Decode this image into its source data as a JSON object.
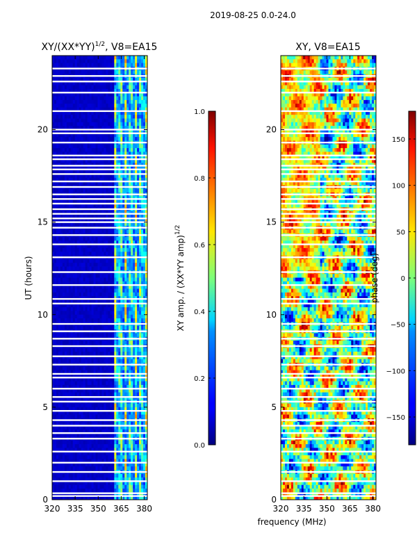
{
  "suptitle": "2019-08-25 0.0-24.0",
  "chart_data": [
    {
      "type": "heatmap",
      "title": "XY/(XX*YY)^(1/2), V8=EA15",
      "title_main": "XY/(XX*YY)",
      "title_exp": "1/2",
      "title_suffix": ", V8=EA15",
      "xlabel": "",
      "ylabel": "UT (hours)",
      "xlim": [
        320,
        382
      ],
      "ylim": [
        0,
        24
      ],
      "xticks": [
        320,
        335,
        350,
        365,
        380
      ],
      "yticks": [
        0,
        5,
        10,
        15,
        20
      ],
      "colorbar": {
        "label": "XY amp. / (XX*YY amp)^(1/2)",
        "label_main": "XY amp. / (XX*YY amp)",
        "label_exp": "1/2",
        "range": [
          0.0,
          1.0
        ],
        "ticks": [
          0.0,
          0.2,
          0.4,
          0.6,
          0.8,
          1.0
        ],
        "tick_labels": [
          "0.0",
          "0.2",
          "0.4",
          "0.6",
          "0.8",
          "1.0"
        ]
      },
      "signal_band_mhz": [
        360,
        382
      ],
      "flagged_hours": [
        0.2,
        0.35,
        1.0,
        1.5,
        2.0,
        2.6,
        3.3,
        3.6,
        4.0,
        4.3,
        4.8,
        5.3,
        5.55,
        6.0,
        6.6,
        6.8,
        7.3,
        7.75,
        8.3,
        8.7,
        9.1,
        9.5,
        10.6,
        10.85,
        11.6,
        12.3,
        13.1,
        13.8,
        14.3,
        14.7,
        15.0,
        15.2,
        15.45,
        15.7,
        16.0,
        16.25,
        16.5,
        16.9,
        17.2,
        17.6,
        17.85,
        18.05,
        18.4,
        18.6,
        19.3,
        19.8,
        20.0,
        21.0,
        22.0,
        22.6,
        22.9,
        23.3
      ]
    },
    {
      "type": "heatmap",
      "title": "XY, V8=EA15",
      "xlabel": "frequency (MHz)",
      "ylabel": "",
      "xlim": [
        320,
        382
      ],
      "ylim": [
        0,
        24
      ],
      "xticks": [
        320,
        335,
        350,
        365,
        380
      ],
      "yticks": [
        0,
        5,
        10,
        15,
        20
      ],
      "colorbar": {
        "label": "phase (deg)",
        "range": [
          -180,
          180
        ],
        "ticks": [
          -150,
          -100,
          -50,
          0,
          50,
          100,
          150
        ],
        "tick_labels": [
          "−150",
          "−100",
          "−50",
          "0",
          "50",
          "100",
          "150"
        ]
      },
      "flagged_hours": [
        0.2,
        0.35,
        1.0,
        1.5,
        2.0,
        2.6,
        3.3,
        3.6,
        4.0,
        4.3,
        4.8,
        5.3,
        5.55,
        6.0,
        6.6,
        6.8,
        7.3,
        7.75,
        8.3,
        8.7,
        9.1,
        9.5,
        10.6,
        10.85,
        11.6,
        12.3,
        13.1,
        13.8,
        14.3,
        14.7,
        15.0,
        15.2,
        15.45,
        15.7,
        16.0,
        16.25,
        16.5,
        16.9,
        17.2,
        17.6,
        17.85,
        18.05,
        18.4,
        18.6,
        19.3,
        19.8,
        20.0,
        21.0,
        22.0,
        22.6,
        22.9,
        23.3
      ]
    }
  ],
  "colors": {
    "background": "#ffffff",
    "flag_row": "#ffffff"
  }
}
